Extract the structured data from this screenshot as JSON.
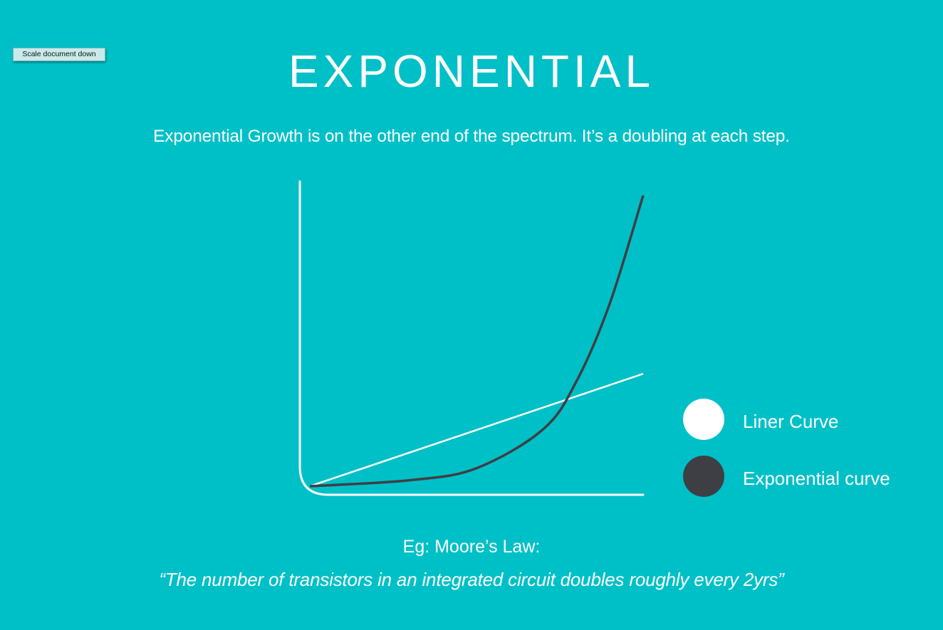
{
  "colors": {
    "background": "#00c0c7",
    "linear": "#ffffff",
    "exponential": "#3d3f45",
    "text": "#ffffff"
  },
  "toolbar": {
    "scale_button_label": "Scale document down"
  },
  "slide": {
    "title": "EXPONENTIAL",
    "subtitle": "Exponential Growth is on the other end of the spectrum. It’s a doubling at each step.",
    "example_label": "Eg: Moore’s Law:",
    "quote": "“The number of transistors in an integrated circuit doubles roughly every 2yrs”"
  },
  "chart_data": {
    "type": "line",
    "title": "",
    "xlabel": "",
    "ylabel": "",
    "axes_ticks": false,
    "grid": false,
    "legend_position": "right",
    "xlim": [
      0,
      1
    ],
    "ylim": [
      0,
      1
    ],
    "series": [
      {
        "name": "Liner Curve",
        "color": "#ffffff",
        "x": [
          0,
          1
        ],
        "y": [
          0.0,
          0.375
        ]
      },
      {
        "name": "Exponential curve",
        "color": "#3d3f45",
        "x": [
          0,
          0.3,
          0.5,
          0.7,
          0.8,
          0.9,
          1.0
        ],
        "y": [
          0.0,
          0.02,
          0.06,
          0.19,
          0.35,
          0.61,
          0.97
        ]
      }
    ]
  }
}
